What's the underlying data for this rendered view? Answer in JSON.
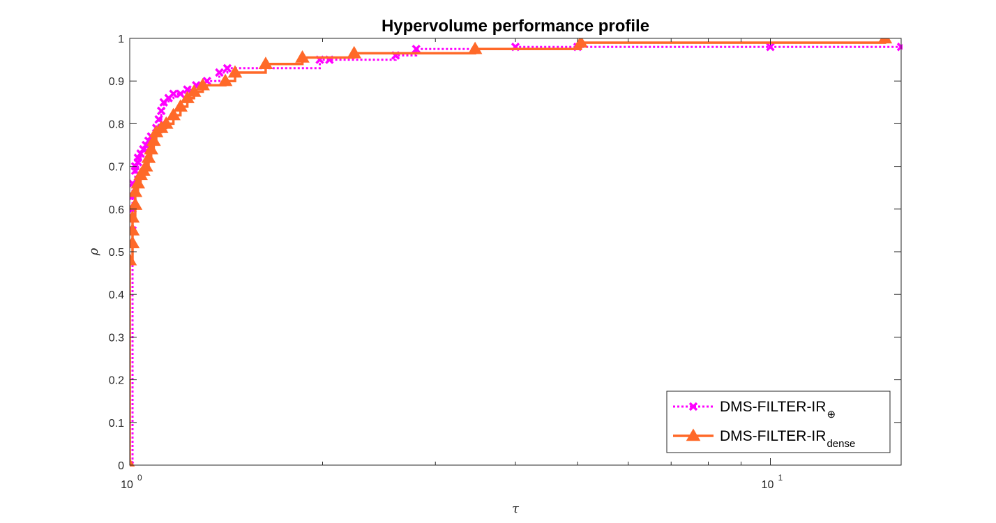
{
  "chart_data": {
    "type": "line",
    "title": "Hypervolume performance profile",
    "xlabel": "τ",
    "ylabel": "ρ",
    "xscale": "log",
    "xlim": [
      1,
      16
    ],
    "ylim": [
      0,
      1
    ],
    "grid": false,
    "legend_position": "bottom-right",
    "x_tick_labels": [
      {
        "base": "10",
        "exp": "0"
      },
      {
        "base": "10",
        "exp": "1"
      }
    ],
    "y_tick_labels": [
      "0",
      "0.1",
      "0.2",
      "0.3",
      "0.4",
      "0.5",
      "0.6",
      "0.7",
      "0.8",
      "0.9",
      "1"
    ],
    "series": [
      {
        "name": "DMS-FILTER-IR",
        "name_subscript": "⊕",
        "color": "#FF00FF",
        "line_style": "dotted",
        "marker": "x",
        "x": [
          1.0,
          1.0,
          1.01,
          1.01,
          1.01,
          1.01,
          1.02,
          1.02,
          1.03,
          1.03,
          1.04,
          1.05,
          1.06,
          1.07,
          1.08,
          1.1,
          1.11,
          1.12,
          1.13,
          1.15,
          1.17,
          1.2,
          1.23,
          1.27,
          1.32,
          1.38,
          1.42,
          1.98,
          2.05,
          2.6,
          2.8,
          4.0,
          5.0,
          10.0,
          16.0
        ],
        "y": [
          0.0,
          0.0,
          0.55,
          0.6,
          0.63,
          0.66,
          0.69,
          0.7,
          0.71,
          0.72,
          0.73,
          0.74,
          0.75,
          0.76,
          0.77,
          0.79,
          0.81,
          0.83,
          0.85,
          0.86,
          0.87,
          0.87,
          0.88,
          0.89,
          0.9,
          0.92,
          0.93,
          0.95,
          0.95,
          0.96,
          0.975,
          0.98,
          0.98,
          0.98,
          0.98
        ]
      },
      {
        "name": "DMS-FILTER-IR",
        "name_subscript": "dense",
        "color": "#FF6929",
        "line_style": "solid",
        "marker": "triangle",
        "x": [
          1.0,
          1.0,
          1.01,
          1.01,
          1.01,
          1.02,
          1.02,
          1.03,
          1.04,
          1.05,
          1.06,
          1.07,
          1.08,
          1.09,
          1.1,
          1.12,
          1.14,
          1.17,
          1.2,
          1.23,
          1.26,
          1.3,
          1.41,
          1.46,
          1.63,
          1.86,
          2.24,
          3.46,
          5.06,
          15.1
        ],
        "y": [
          0.0,
          0.48,
          0.52,
          0.55,
          0.58,
          0.61,
          0.64,
          0.66,
          0.68,
          0.69,
          0.7,
          0.72,
          0.74,
          0.76,
          0.78,
          0.79,
          0.8,
          0.82,
          0.84,
          0.86,
          0.875,
          0.89,
          0.9,
          0.92,
          0.94,
          0.955,
          0.965,
          0.975,
          0.99,
          1.0
        ]
      }
    ]
  }
}
